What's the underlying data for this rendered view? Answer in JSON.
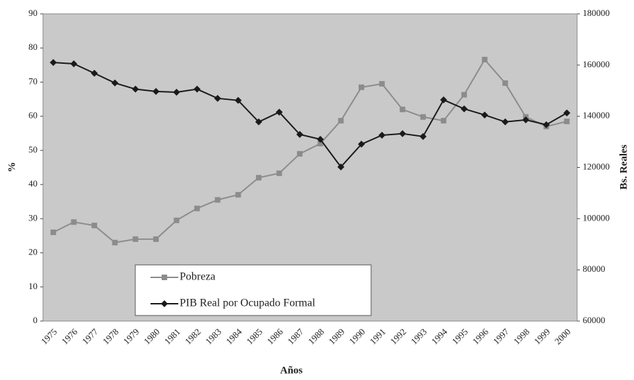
{
  "chart_data": {
    "type": "line",
    "x_label": "Años",
    "y_label": "%",
    "y2_label": "Bs. Reales",
    "categories": [
      "1975",
      "1976",
      "1977",
      "1978",
      "1979",
      "1980",
      "1981",
      "1982",
      "1983",
      "1984",
      "1985",
      "1986",
      "1987",
      "1988",
      "1989",
      "1990",
      "1991",
      "1992",
      "1993",
      "1994",
      "1995",
      "1996",
      "1997",
      "1998",
      "1999",
      "2000"
    ],
    "ylim": [
      0,
      90
    ],
    "yticks": [
      0,
      10,
      20,
      30,
      40,
      50,
      60,
      70,
      80,
      90
    ],
    "y2lim": [
      60000,
      180000
    ],
    "y2ticks": [
      60000,
      80000,
      100000,
      120000,
      140000,
      160000,
      180000
    ],
    "legend": "lower left",
    "series": [
      {
        "name": "Pobreza",
        "color": "#8c8c8c",
        "marker": "square",
        "values": [
          26,
          29,
          28,
          23,
          24,
          24,
          29.5,
          33,
          35.5,
          37,
          42,
          43.3,
          49,
          52,
          58.7,
          68.5,
          69.5,
          62,
          59.8,
          58.7,
          66.3,
          76.6,
          69.7,
          59.8,
          57,
          58.5
        ]
      },
      {
        "name": "PIB Real por Ocupado Formal",
        "color": "#1a1a1a",
        "marker": "diamond",
        "axis": "y2",
        "values": [
          161000,
          160500,
          156800,
          153000,
          150600,
          149700,
          149400,
          150600,
          147000,
          146200,
          137800,
          141600,
          132900,
          131000,
          120200,
          129100,
          132600,
          133200,
          132100,
          146400,
          142900,
          140500,
          137800,
          138600,
          136700,
          141300
        ]
      }
    ]
  }
}
